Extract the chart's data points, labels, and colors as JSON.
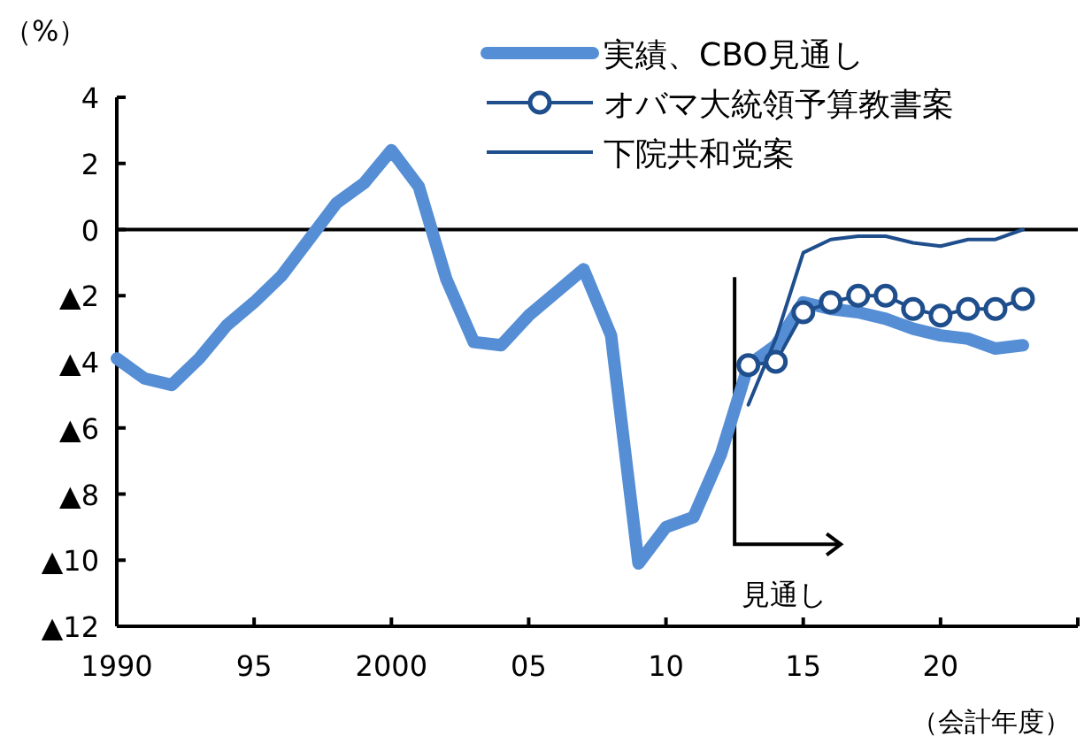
{
  "chart_data": {
    "type": "line",
    "ylabel": "（%）",
    "xlabel": "（会計年度）",
    "xlim": [
      1990,
      2025
    ],
    "ylim": [
      -12,
      4
    ],
    "xticks": [
      1990,
      {
        "value": 1995,
        "label": "95"
      },
      2000,
      {
        "value": 2005,
        "label": "05"
      },
      {
        "value": 2010,
        "label": "10"
      },
      {
        "value": 2015,
        "label": "15"
      },
      {
        "value": 2020,
        "label": "20"
      }
    ],
    "yticks": [
      {
        "value": -12,
        "label": "▲12"
      },
      {
        "value": -10,
        "label": "▲10"
      },
      {
        "value": -8,
        "label": "▲8"
      },
      {
        "value": -6,
        "label": "▲6"
      },
      {
        "value": -4,
        "label": "▲4"
      },
      {
        "value": -2,
        "label": "▲2"
      },
      0,
      2,
      4
    ],
    "legend": "top right",
    "grid": false,
    "ref_lines": [
      {
        "axis": "y",
        "value": 0
      },
      {
        "axis": "x",
        "value": 2012.5,
        "label": "見通し"
      }
    ],
    "series": [
      {
        "name": "実績、CBO見通し",
        "color": "#558ed5",
        "marker": "none",
        "x": [
          1990,
          1991,
          1992,
          1993,
          1994,
          1995,
          1996,
          1997,
          1998,
          1999,
          2000,
          2001,
          2002,
          2003,
          2004,
          2005,
          2006,
          2007,
          2008,
          2009,
          2010,
          2011,
          2012,
          2013,
          2014,
          2015,
          2016,
          2017,
          2018,
          2019,
          2020,
          2021,
          2022,
          2023
        ],
        "values": [
          -3.9,
          -4.5,
          -4.7,
          -3.9,
          -2.9,
          -2.2,
          -1.4,
          -0.3,
          0.8,
          1.4,
          2.4,
          1.3,
          -1.5,
          -3.4,
          -3.5,
          -2.6,
          -1.9,
          -1.2,
          -3.2,
          -10.1,
          -9.0,
          -8.7,
          -6.8,
          -4.1,
          -3.5,
          -2.2,
          -2.4,
          -2.5,
          -2.7,
          -3.0,
          -3.2,
          -3.3,
          -3.6,
          -3.5
        ]
      },
      {
        "name": "オバマ大統領予算教書案",
        "color": "#1f4e8c",
        "marker": "circle",
        "x": [
          2013,
          2014,
          2015,
          2016,
          2017,
          2018,
          2019,
          2020,
          2021,
          2022,
          2023
        ],
        "values": [
          -4.1,
          -4.0,
          -2.5,
          -2.2,
          -2.0,
          -2.0,
          -2.4,
          -2.6,
          -2.4,
          -2.4,
          -2.1
        ]
      },
      {
        "name": "下院共和党案",
        "color": "#1f4e8c",
        "marker": "none",
        "x": [
          2013,
          2014,
          2015,
          2016,
          2017,
          2018,
          2019,
          2020,
          2021,
          2022,
          2023
        ],
        "values": [
          -5.3,
          -3.3,
          -0.7,
          -0.3,
          -0.2,
          -0.2,
          -0.4,
          -0.5,
          -0.3,
          -0.3,
          0.0
        ]
      }
    ]
  }
}
